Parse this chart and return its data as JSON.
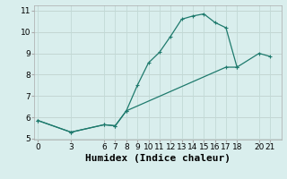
{
  "xlabel": "Humidex (Indice chaleur)",
  "background_color": "#d9eeed",
  "grid_color": "#c2d9d6",
  "line_color": "#1e7a6d",
  "line1_x": [
    0,
    3,
    6,
    7,
    8,
    9,
    10,
    11,
    12,
    13,
    14,
    15,
    16,
    17,
    18
  ],
  "line1_y": [
    5.85,
    5.3,
    5.65,
    5.6,
    6.3,
    7.5,
    8.55,
    9.05,
    9.8,
    10.6,
    10.75,
    10.85,
    10.45,
    10.2,
    8.35
  ],
  "line2_x": [
    0,
    3,
    6,
    7,
    8,
    17,
    18,
    20,
    21
  ],
  "line2_y": [
    5.85,
    5.3,
    5.65,
    5.6,
    6.3,
    8.35,
    8.35,
    9.0,
    8.85
  ],
  "xlim": [
    -0.3,
    22
  ],
  "ylim": [
    4.95,
    11.25
  ],
  "xticks": [
    0,
    3,
    6,
    7,
    8,
    9,
    10,
    11,
    12,
    13,
    14,
    15,
    16,
    17,
    18,
    20,
    21
  ],
  "yticks": [
    5,
    6,
    7,
    8,
    9,
    10,
    11
  ],
  "tick_fontsize": 6.5,
  "label_fontsize": 8.0
}
